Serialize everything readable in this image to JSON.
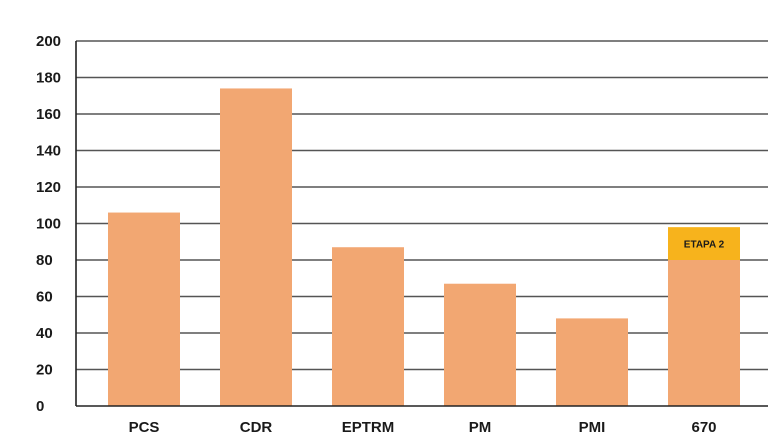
{
  "chart_data": {
    "type": "bar",
    "title": "",
    "xlabel": "",
    "ylabel": "",
    "categories": [
      "PCS",
      "CDR",
      "EPTRM",
      "PM",
      "PMI",
      "670"
    ],
    "values": [
      106,
      174,
      87,
      67,
      48,
      80
    ],
    "ylim": [
      0,
      200
    ],
    "yticks": [
      0,
      20,
      40,
      60,
      80,
      100,
      120,
      140,
      160,
      180,
      200
    ],
    "grid": true,
    "annotations": [
      {
        "category": "670",
        "text": "ETAPA 2",
        "from": 80,
        "to": 98,
        "color": "#f7b31c"
      }
    ],
    "colors": {
      "bar": "#f2a772",
      "grid": "#555555",
      "axis": "#222222"
    }
  }
}
